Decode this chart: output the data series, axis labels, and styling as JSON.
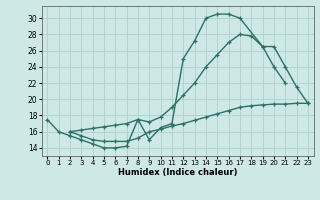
{
  "bg_color": "#cde8e5",
  "grid_color": "#aecfcc",
  "line_color": "#2d7068",
  "xlabel": "Humidex (Indice chaleur)",
  "xlim": [
    -0.5,
    23.5
  ],
  "ylim": [
    13.0,
    31.5
  ],
  "xticks": [
    0,
    1,
    2,
    3,
    4,
    5,
    6,
    7,
    8,
    9,
    10,
    11,
    12,
    13,
    14,
    15,
    16,
    17,
    18,
    19,
    20,
    21,
    22,
    23
  ],
  "yticks": [
    14,
    16,
    18,
    20,
    22,
    24,
    26,
    28,
    30
  ],
  "top_x": [
    0,
    1,
    2,
    3,
    4,
    5,
    6,
    7,
    8,
    9,
    10,
    11,
    12,
    13,
    14,
    15,
    16,
    17,
    19,
    20,
    21
  ],
  "top_y": [
    17.5,
    16.0,
    15.5,
    15.0,
    14.5,
    14.0,
    14.0,
    14.2,
    17.5,
    15.0,
    16.5,
    17.0,
    25.0,
    27.2,
    30.0,
    30.5,
    30.5,
    30.0,
    26.5,
    24.0,
    22.0
  ],
  "mid_x": [
    2,
    3,
    4,
    5,
    6,
    7,
    8,
    9,
    10,
    11,
    12,
    13,
    14,
    15,
    16,
    17,
    18,
    19,
    20,
    21,
    22,
    23
  ],
  "mid_y": [
    16.0,
    16.2,
    16.4,
    16.6,
    16.8,
    17.0,
    17.5,
    17.2,
    17.8,
    19.0,
    20.5,
    22.0,
    24.0,
    25.5,
    27.0,
    28.0,
    27.8,
    26.5,
    26.5,
    24.0,
    21.5,
    19.5
  ],
  "bot_x": [
    2,
    3,
    4,
    5,
    6,
    7,
    8,
    9,
    10,
    11,
    12,
    13,
    14,
    15,
    16,
    17,
    18,
    19,
    20,
    21,
    22,
    23
  ],
  "bot_y": [
    16.0,
    15.5,
    15.0,
    14.8,
    14.8,
    14.8,
    15.2,
    16.0,
    16.3,
    16.7,
    17.0,
    17.4,
    17.8,
    18.2,
    18.6,
    19.0,
    19.2,
    19.3,
    19.4,
    19.4,
    19.5,
    19.5
  ],
  "lw": 1.0,
  "ms": 2.5
}
